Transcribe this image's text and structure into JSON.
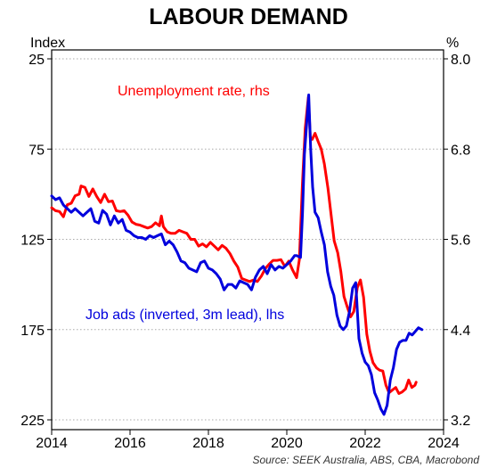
{
  "chart_data": {
    "type": "line",
    "title": "LABOUR DEMAND",
    "left_axis_label": "Index",
    "right_axis_label": "%",
    "source": "Source: SEEK Australia, ABS, CBA, Macrobond",
    "x_ticks": [
      "2014",
      "2016",
      "2018",
      "2020",
      "2022",
      "2024"
    ],
    "xlim": [
      2014,
      2024
    ],
    "left_axis": {
      "inverted": true,
      "ylim": [
        25,
        225
      ],
      "ticks": [
        "25",
        "75",
        "125",
        "175",
        "225"
      ]
    },
    "right_axis": {
      "ylim": [
        3.2,
        8.0
      ],
      "ticks": [
        "8.0",
        "6.8",
        "5.6",
        "4.4",
        "3.2"
      ]
    },
    "grid": "horizontal-dotted",
    "colors": {
      "unemployment": "#ff0000",
      "job_ads": "#0000dd",
      "grid": "#aaaaaa"
    },
    "series": [
      {
        "name": "Unemployment rate, rhs",
        "axis": "right",
        "points": [
          [
            2014.0,
            6.02
          ],
          [
            2014.1,
            5.98
          ],
          [
            2014.2,
            5.97
          ],
          [
            2014.3,
            5.9
          ],
          [
            2014.4,
            6.06
          ],
          [
            2014.5,
            6.08
          ],
          [
            2014.6,
            6.18
          ],
          [
            2014.7,
            6.2
          ],
          [
            2014.75,
            6.31
          ],
          [
            2014.85,
            6.29
          ],
          [
            2014.95,
            6.17
          ],
          [
            2015.05,
            6.27
          ],
          [
            2015.15,
            6.17
          ],
          [
            2015.25,
            6.09
          ],
          [
            2015.35,
            6.2
          ],
          [
            2015.45,
            6.1
          ],
          [
            2015.55,
            6.11
          ],
          [
            2015.65,
            5.98
          ],
          [
            2015.75,
            5.97
          ],
          [
            2015.85,
            5.98
          ],
          [
            2015.95,
            5.92
          ],
          [
            2016.05,
            5.83
          ],
          [
            2016.15,
            5.8
          ],
          [
            2016.25,
            5.79
          ],
          [
            2016.35,
            5.77
          ],
          [
            2016.45,
            5.75
          ],
          [
            2016.55,
            5.77
          ],
          [
            2016.65,
            5.82
          ],
          [
            2016.75,
            5.78
          ],
          [
            2016.8,
            5.91
          ],
          [
            2016.85,
            5.77
          ],
          [
            2016.95,
            5.7
          ],
          [
            2017.05,
            5.68
          ],
          [
            2017.15,
            5.68
          ],
          [
            2017.25,
            5.72
          ],
          [
            2017.35,
            5.7
          ],
          [
            2017.45,
            5.68
          ],
          [
            2017.55,
            5.6
          ],
          [
            2017.65,
            5.6
          ],
          [
            2017.75,
            5.51
          ],
          [
            2017.85,
            5.54
          ],
          [
            2017.95,
            5.5
          ],
          [
            2018.05,
            5.56
          ],
          [
            2018.15,
            5.51
          ],
          [
            2018.25,
            5.46
          ],
          [
            2018.35,
            5.52
          ],
          [
            2018.45,
            5.48
          ],
          [
            2018.55,
            5.41
          ],
          [
            2018.65,
            5.31
          ],
          [
            2018.75,
            5.23
          ],
          [
            2018.85,
            5.08
          ],
          [
            2018.95,
            5.06
          ],
          [
            2019.05,
            5.04
          ],
          [
            2019.15,
            5.06
          ],
          [
            2019.25,
            5.04
          ],
          [
            2019.35,
            5.11
          ],
          [
            2019.45,
            5.21
          ],
          [
            2019.55,
            5.27
          ],
          [
            2019.65,
            5.32
          ],
          [
            2019.75,
            5.32
          ],
          [
            2019.85,
            5.33
          ],
          [
            2019.95,
            5.24
          ],
          [
            2020.05,
            5.31
          ],
          [
            2020.15,
            5.19
          ],
          [
            2020.25,
            5.09
          ],
          [
            2020.32,
            5.33
          ],
          [
            2020.4,
            6.35
          ],
          [
            2020.47,
            7.08
          ],
          [
            2020.55,
            7.49
          ],
          [
            2020.6,
            6.95
          ],
          [
            2020.65,
            6.93
          ],
          [
            2020.72,
            7.01
          ],
          [
            2020.8,
            6.9
          ],
          [
            2020.88,
            6.8
          ],
          [
            2020.96,
            6.6
          ],
          [
            2021.05,
            6.28
          ],
          [
            2021.13,
            5.93
          ],
          [
            2021.21,
            5.58
          ],
          [
            2021.3,
            5.42
          ],
          [
            2021.38,
            5.17
          ],
          [
            2021.46,
            4.84
          ],
          [
            2021.55,
            4.69
          ],
          [
            2021.63,
            4.57
          ],
          [
            2021.71,
            4.64
          ],
          [
            2021.8,
            4.96
          ],
          [
            2021.88,
            5.06
          ],
          [
            2021.96,
            4.83
          ],
          [
            2022.04,
            4.34
          ],
          [
            2022.12,
            4.11
          ],
          [
            2022.2,
            3.96
          ],
          [
            2022.29,
            3.89
          ],
          [
            2022.37,
            3.86
          ],
          [
            2022.45,
            3.85
          ],
          [
            2022.53,
            3.66
          ],
          [
            2022.61,
            3.56
          ],
          [
            2022.7,
            3.6
          ],
          [
            2022.78,
            3.63
          ],
          [
            2022.86,
            3.55
          ],
          [
            2022.94,
            3.57
          ],
          [
            2023.03,
            3.61
          ],
          [
            2023.11,
            3.73
          ],
          [
            2023.19,
            3.63
          ],
          [
            2023.27,
            3.66
          ],
          [
            2023.3,
            3.7
          ]
        ]
      },
      {
        "name": "Job ads (inverted, 3m lead), lhs",
        "axis": "left",
        "points": [
          [
            2014.0,
            101
          ],
          [
            2014.1,
            103
          ],
          [
            2014.2,
            102
          ],
          [
            2014.3,
            106
          ],
          [
            2014.4,
            108
          ],
          [
            2014.5,
            110
          ],
          [
            2014.6,
            108
          ],
          [
            2014.7,
            110
          ],
          [
            2014.8,
            112
          ],
          [
            2014.9,
            110
          ],
          [
            2015.0,
            108
          ],
          [
            2015.1,
            115
          ],
          [
            2015.2,
            116
          ],
          [
            2015.3,
            109
          ],
          [
            2015.4,
            111
          ],
          [
            2015.5,
            117
          ],
          [
            2015.6,
            112
          ],
          [
            2015.7,
            116
          ],
          [
            2015.8,
            114
          ],
          [
            2015.9,
            120
          ],
          [
            2016.0,
            121
          ],
          [
            2016.1,
            123
          ],
          [
            2016.2,
            124
          ],
          [
            2016.3,
            124
          ],
          [
            2016.4,
            125
          ],
          [
            2016.5,
            123
          ],
          [
            2016.6,
            124
          ],
          [
            2016.7,
            123
          ],
          [
            2016.8,
            122
          ],
          [
            2016.9,
            128
          ],
          [
            2017.0,
            126
          ],
          [
            2017.1,
            128
          ],
          [
            2017.2,
            132
          ],
          [
            2017.3,
            137
          ],
          [
            2017.4,
            138
          ],
          [
            2017.5,
            141
          ],
          [
            2017.6,
            142
          ],
          [
            2017.7,
            143
          ],
          [
            2017.8,
            138
          ],
          [
            2017.9,
            137
          ],
          [
            2018.0,
            141
          ],
          [
            2018.1,
            142
          ],
          [
            2018.2,
            144
          ],
          [
            2018.3,
            147
          ],
          [
            2018.4,
            153
          ],
          [
            2018.5,
            150
          ],
          [
            2018.6,
            150
          ],
          [
            2018.7,
            152
          ],
          [
            2018.8,
            148
          ],
          [
            2018.9,
            149
          ],
          [
            2019.0,
            150
          ],
          [
            2019.1,
            153
          ],
          [
            2019.2,
            146
          ],
          [
            2019.3,
            142
          ],
          [
            2019.4,
            140
          ],
          [
            2019.5,
            144
          ],
          [
            2019.6,
            139
          ],
          [
            2019.7,
            142
          ],
          [
            2019.8,
            140
          ],
          [
            2019.9,
            141
          ],
          [
            2020.0,
            139
          ],
          [
            2020.1,
            137
          ],
          [
            2020.2,
            134
          ],
          [
            2020.25,
            134
          ],
          [
            2020.35,
            135
          ],
          [
            2020.4,
            111
          ],
          [
            2020.45,
            78
          ],
          [
            2020.5,
            63
          ],
          [
            2020.56,
            45
          ],
          [
            2020.61,
            75
          ],
          [
            2020.66,
            96
          ],
          [
            2020.72,
            110
          ],
          [
            2020.8,
            113
          ],
          [
            2020.88,
            121
          ],
          [
            2020.96,
            128
          ],
          [
            2021.04,
            143
          ],
          [
            2021.12,
            151
          ],
          [
            2021.2,
            156
          ],
          [
            2021.28,
            167
          ],
          [
            2021.36,
            173
          ],
          [
            2021.44,
            175
          ],
          [
            2021.52,
            173
          ],
          [
            2021.6,
            165
          ],
          [
            2021.68,
            152
          ],
          [
            2021.76,
            149
          ],
          [
            2021.84,
            180
          ],
          [
            2021.92,
            188
          ],
          [
            2022.0,
            193
          ],
          [
            2022.08,
            195
          ],
          [
            2022.16,
            200
          ],
          [
            2022.24,
            210
          ],
          [
            2022.32,
            214
          ],
          [
            2022.4,
            219
          ],
          [
            2022.48,
            222
          ],
          [
            2022.56,
            217
          ],
          [
            2022.64,
            203
          ],
          [
            2022.72,
            196
          ],
          [
            2022.8,
            186
          ],
          [
            2022.88,
            182
          ],
          [
            2022.96,
            181
          ],
          [
            2023.04,
            181
          ],
          [
            2023.12,
            177
          ],
          [
            2023.2,
            178
          ],
          [
            2023.28,
            176
          ],
          [
            2023.36,
            174
          ],
          [
            2023.45,
            175
          ]
        ]
      }
    ],
    "annotations": [
      {
        "text": "Unemployment rate, rhs",
        "series": 0
      },
      {
        "text": "Job ads (inverted, 3m lead), lhs",
        "series": 1
      }
    ]
  }
}
